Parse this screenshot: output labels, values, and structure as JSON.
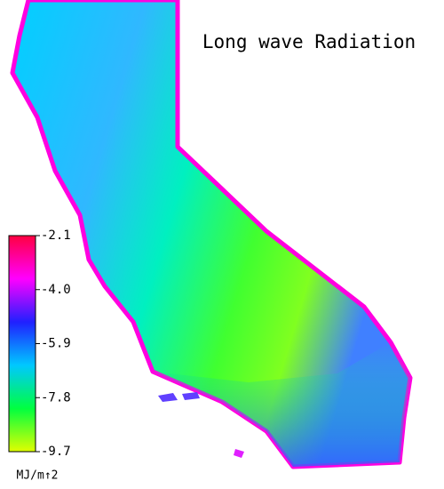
{
  "title": "Long wave Radiation",
  "colorbar": {
    "lim": [
      -9.7,
      -2.1
    ],
    "ticks": [
      -2.1,
      {
        "value": -4,
        "label": "-4.0"
      },
      -5.9,
      -7.8,
      -9.7
    ],
    "unit": "MJ/m↑2",
    "colors": [
      "#ff0040",
      "#ff00ff",
      "#2020ff",
      "#00c8ff",
      "#00ff40",
      "#e0ff00"
    ]
  }
}
